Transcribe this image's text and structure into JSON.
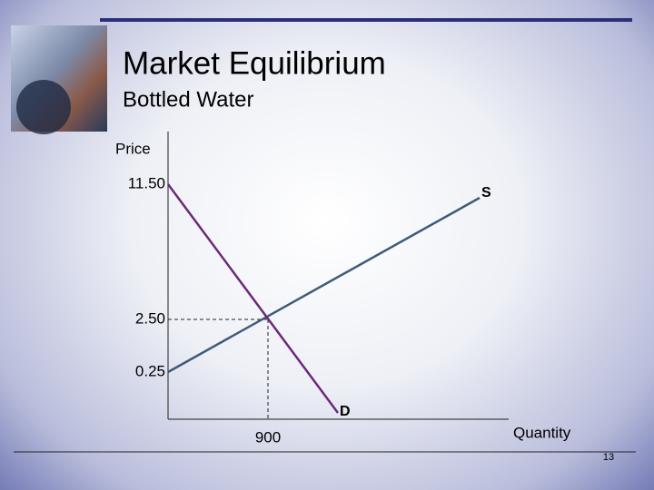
{
  "header": {
    "title": "Market Equilibrium",
    "subtitle": "Bottled Water"
  },
  "diagram": {
    "y_axis_label": "Price",
    "x_axis_label": "Quantity",
    "y_labels": [
      "11.50",
      "2.50",
      "0.25"
    ],
    "x_labels": [
      "900"
    ],
    "curves": {
      "supply": "S",
      "demand": "D"
    }
  },
  "footer": {
    "page_number": "13"
  }
}
